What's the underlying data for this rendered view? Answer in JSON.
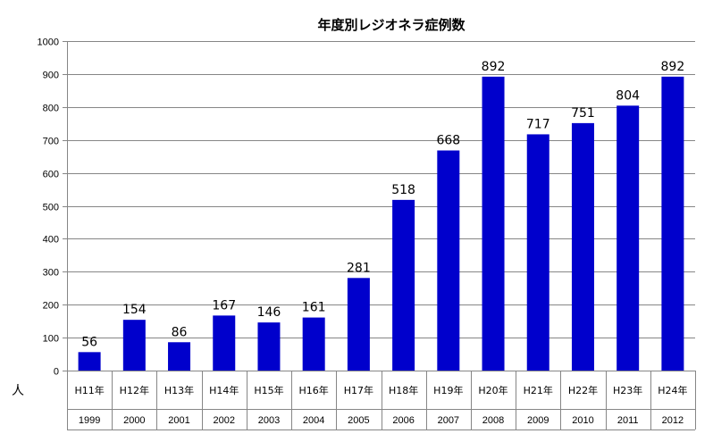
{
  "chart_data": {
    "type": "bar",
    "title": "年度別レジオネラ症例数",
    "ylabel": "人",
    "xlabel": "",
    "ylim": [
      0,
      1000
    ],
    "yticks": [
      0,
      100,
      200,
      300,
      400,
      500,
      600,
      700,
      800,
      900,
      1000
    ],
    "grid": true,
    "categories": [
      "H11年",
      "H12年",
      "H13年",
      "H14年",
      "H15年",
      "H16年",
      "H17年",
      "H18年",
      "H19年",
      "H20年",
      "H21年",
      "H22年",
      "H23年",
      "H24年"
    ],
    "years": [
      "1999",
      "2000",
      "2001",
      "2002",
      "2003",
      "2004",
      "2005",
      "2006",
      "2007",
      "2008",
      "2009",
      "2010",
      "2011",
      "2012"
    ],
    "values": [
      56,
      154,
      86,
      167,
      146,
      161,
      281,
      518,
      668,
      892,
      717,
      751,
      804,
      892
    ],
    "bar_color": "#0000cc",
    "grid_color": "#868686"
  }
}
